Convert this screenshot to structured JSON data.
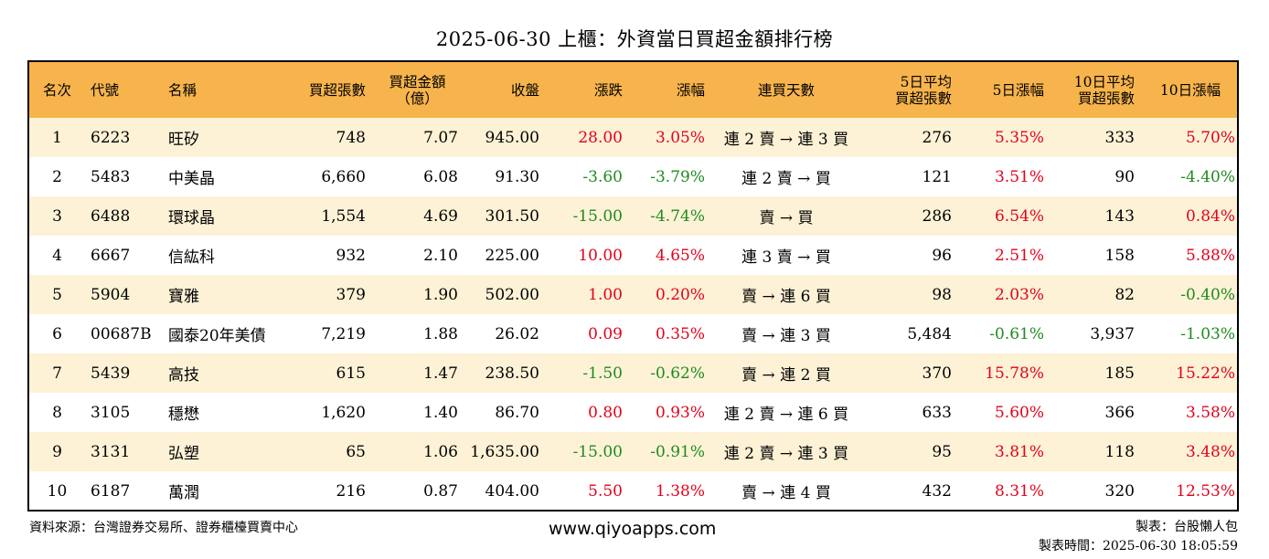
{
  "title": "2025-06-30 上櫃：外資當日買超金額排行榜",
  "headers": [
    {
      "line1": "名次",
      "line2": ""
    },
    {
      "line1": "代號",
      "line2": ""
    },
    {
      "line1": "名稱",
      "line2": ""
    },
    {
      "line1": "買超張數",
      "line2": ""
    },
    {
      "line1": "買超金額",
      "line2": "（億）"
    },
    {
      "line1": "收盤",
      "line2": ""
    },
    {
      "line1": "漲跌",
      "line2": ""
    },
    {
      "line1": "漲幅",
      "line2": ""
    },
    {
      "line1": "連買天數",
      "line2": ""
    },
    {
      "line1": "5日平均",
      "line2": "買超張數"
    },
    {
      "line1": "5日漲幅",
      "line2": ""
    },
    {
      "line1": "10日平均",
      "line2": "買超張數"
    },
    {
      "line1": "10日漲幅",
      "line2": ""
    }
  ],
  "rows": [
    {
      "rank": "1",
      "code": "6223",
      "name": "旺矽",
      "vol": "748",
      "amt": "7.07",
      "close": "945.00",
      "chg": "28.00",
      "pct": "3.05%",
      "streak": "連 2 賣 → 連 3 買",
      "avg5": "276",
      "pct5": "5.35%",
      "avg10": "333",
      "pct10": "5.70%"
    },
    {
      "rank": "2",
      "code": "5483",
      "name": "中美晶",
      "vol": "6,660",
      "amt": "6.08",
      "close": "91.30",
      "chg": "-3.60",
      "pct": "-3.79%",
      "streak": "連 2 賣 → 買",
      "avg5": "121",
      "pct5": "3.51%",
      "avg10": "90",
      "pct10": "-4.40%"
    },
    {
      "rank": "3",
      "code": "6488",
      "name": "環球晶",
      "vol": "1,554",
      "amt": "4.69",
      "close": "301.50",
      "chg": "-15.00",
      "pct": "-4.74%",
      "streak": "賣 → 買",
      "avg5": "286",
      "pct5": "6.54%",
      "avg10": "143",
      "pct10": "0.84%"
    },
    {
      "rank": "4",
      "code": "6667",
      "name": "信紘科",
      "vol": "932",
      "amt": "2.10",
      "close": "225.00",
      "chg": "10.00",
      "pct": "4.65%",
      "streak": "連 3 賣 → 買",
      "avg5": "96",
      "pct5": "2.51%",
      "avg10": "158",
      "pct10": "5.88%"
    },
    {
      "rank": "5",
      "code": "5904",
      "name": "寶雅",
      "vol": "379",
      "amt": "1.90",
      "close": "502.00",
      "chg": "1.00",
      "pct": "0.20%",
      "streak": "賣 → 連 6 買",
      "avg5": "98",
      "pct5": "2.03%",
      "avg10": "82",
      "pct10": "-0.40%"
    },
    {
      "rank": "6",
      "code": "00687B",
      "name": "國泰20年美債",
      "vol": "7,219",
      "amt": "1.88",
      "close": "26.02",
      "chg": "0.09",
      "pct": "0.35%",
      "streak": "賣 → 連 3 買",
      "avg5": "5,484",
      "pct5": "-0.61%",
      "avg10": "3,937",
      "pct10": "-1.03%"
    },
    {
      "rank": "7",
      "code": "5439",
      "name": "高技",
      "vol": "615",
      "amt": "1.47",
      "close": "238.50",
      "chg": "-1.50",
      "pct": "-0.62%",
      "streak": "賣 → 連 2 買",
      "avg5": "370",
      "pct5": "15.78%",
      "avg10": "185",
      "pct10": "15.22%"
    },
    {
      "rank": "8",
      "code": "3105",
      "name": "穩懋",
      "vol": "1,620",
      "amt": "1.40",
      "close": "86.70",
      "chg": "0.80",
      "pct": "0.93%",
      "streak": "連 2 賣 → 連 6 買",
      "avg5": "633",
      "pct5": "5.60%",
      "avg10": "366",
      "pct10": "3.58%"
    },
    {
      "rank": "9",
      "code": "3131",
      "name": "弘塑",
      "vol": "65",
      "amt": "1.06",
      "close": "1,635.00",
      "chg": "-15.00",
      "pct": "-0.91%",
      "streak": "連 2 賣 → 連 3 買",
      "avg5": "95",
      "pct5": "3.81%",
      "avg10": "118",
      "pct10": "3.48%"
    },
    {
      "rank": "10",
      "code": "6187",
      "name": "萬潤",
      "vol": "216",
      "amt": "0.87",
      "close": "404.00",
      "chg": "5.50",
      "pct": "1.38%",
      "streak": "賣 → 連 4 買",
      "avg5": "432",
      "pct5": "8.31%",
      "avg10": "320",
      "pct10": "12.53%"
    }
  ],
  "colors": {
    "header_bg": "#f7b44c",
    "odd_row_bg": "#fdf2d6",
    "positive": "#e3001b",
    "negative": "#1f8a1f"
  },
  "footer": {
    "source": "資料來源：台灣證券交易所、證券櫃檯買賣中心",
    "website": "www.qiyoapps.com",
    "maker": "製表：台股懶人包",
    "time": "製表時間：2025-06-30 18:05:59"
  }
}
